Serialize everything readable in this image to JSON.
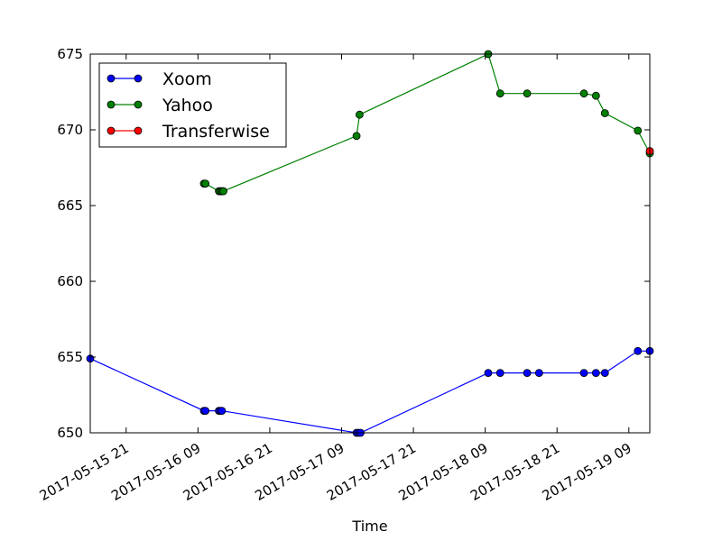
{
  "chart_data": {
    "type": "line",
    "title": "",
    "xlabel": "Time",
    "ylabel": "",
    "x_axis_type": "datetime",
    "xlim": [
      "2017-05-15 15:00",
      "2017-05-19 12:30"
    ],
    "ylim": [
      650,
      675
    ],
    "yticks": [
      650,
      655,
      660,
      665,
      670,
      675
    ],
    "xticks": [
      {
        "t": "2017-05-15 21:00",
        "label": "2017-05-15  21"
      },
      {
        "t": "2017-05-16 09:00",
        "label": "2017-05-16  09"
      },
      {
        "t": "2017-05-16 21:00",
        "label": "2017-05-16  21"
      },
      {
        "t": "2017-05-17 09:00",
        "label": "2017-05-17  09"
      },
      {
        "t": "2017-05-17 21:00",
        "label": "2017-05-17  21"
      },
      {
        "t": "2017-05-18 09:00",
        "label": "2017-05-18  09"
      },
      {
        "t": "2017-05-18 21:00",
        "label": "2017-05-18  21"
      },
      {
        "t": "2017-05-19 09:00",
        "label": "2017-05-19  09"
      }
    ],
    "grid": false,
    "legend_position": "top-left",
    "series": [
      {
        "name": "Xoom",
        "color": "#0000ff",
        "points": [
          {
            "t": "2017-05-15 15:00",
            "y": 654.9
          },
          {
            "t": "2017-05-16 10:00",
            "y": 651.45
          },
          {
            "t": "2017-05-16 10:15",
            "y": 651.45
          },
          {
            "t": "2017-05-16 12:30",
            "y": 651.45
          },
          {
            "t": "2017-05-16 12:45",
            "y": 651.45
          },
          {
            "t": "2017-05-16 13:00",
            "y": 651.45
          },
          {
            "t": "2017-05-17 11:30",
            "y": 650.0
          },
          {
            "t": "2017-05-17 11:50",
            "y": 650.0
          },
          {
            "t": "2017-05-17 12:10",
            "y": 650.0
          },
          {
            "t": "2017-05-18 09:30",
            "y": 653.95
          },
          {
            "t": "2017-05-18 11:30",
            "y": 653.95
          },
          {
            "t": "2017-05-18 16:00",
            "y": 653.95
          },
          {
            "t": "2017-05-18 18:00",
            "y": 653.95
          },
          {
            "t": "2017-05-19 01:30",
            "y": 653.95
          },
          {
            "t": "2017-05-19 03:30",
            "y": 653.95
          },
          {
            "t": "2017-05-19 05:00",
            "y": 653.95
          },
          {
            "t": "2017-05-19 10:30",
            "y": 655.4
          },
          {
            "t": "2017-05-19 12:30",
            "y": 655.4
          }
        ]
      },
      {
        "name": "Yahoo",
        "color": "#008000",
        "points": [
          {
            "t": "2017-05-16 10:00",
            "y": 666.45
          },
          {
            "t": "2017-05-16 10:15",
            "y": 666.45
          },
          {
            "t": "2017-05-16 12:30",
            "y": 665.95
          },
          {
            "t": "2017-05-16 12:45",
            "y": 665.95
          },
          {
            "t": "2017-05-16 13:00",
            "y": 665.95
          },
          {
            "t": "2017-05-16 13:15",
            "y": 665.95
          },
          {
            "t": "2017-05-17 11:30",
            "y": 669.6
          },
          {
            "t": "2017-05-17 12:00",
            "y": 671.0
          },
          {
            "t": "2017-05-18 09:30",
            "y": 675.0
          },
          {
            "t": "2017-05-18 11:30",
            "y": 672.4
          },
          {
            "t": "2017-05-18 16:00",
            "y": 672.4
          },
          {
            "t": "2017-05-19 01:30",
            "y": 672.4
          },
          {
            "t": "2017-05-19 03:30",
            "y": 672.25
          },
          {
            "t": "2017-05-19 05:00",
            "y": 671.1
          },
          {
            "t": "2017-05-19 10:30",
            "y": 669.95
          },
          {
            "t": "2017-05-19 12:30",
            "y": 668.45
          }
        ]
      },
      {
        "name": "Transferwise",
        "color": "#ff0000",
        "points": [
          {
            "t": "2017-05-19 12:30",
            "y": 668.6
          }
        ]
      }
    ]
  }
}
